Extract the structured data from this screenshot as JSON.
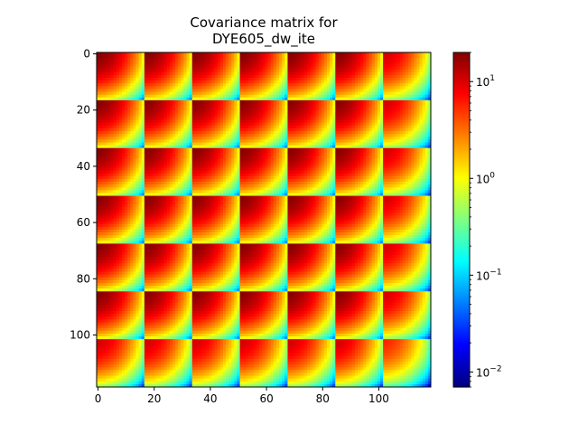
{
  "chart_data": {
    "type": "heatmap",
    "title": "Covariance matrix for",
    "subtitle": "DYE605_dw_ite",
    "xlabel": "",
    "ylabel": "",
    "n": 119,
    "block_size": 17,
    "n_blocks": 7,
    "xlim": [
      0,
      119
    ],
    "ylim": [
      119,
      0
    ],
    "x_ticks": [
      0,
      20,
      40,
      60,
      80,
      100
    ],
    "y_ticks": [
      0,
      20,
      40,
      60,
      80,
      100
    ],
    "color_scale": "log",
    "colormap": "jet",
    "color_range": [
      0.007,
      20
    ],
    "colorbar_ticks": [
      {
        "base": "10",
        "exp": "1",
        "value": 10
      },
      {
        "base": "10",
        "exp": "0",
        "value": 1
      },
      {
        "base": "10",
        "exp": "−1",
        "value": 0.1
      },
      {
        "base": "10",
        "exp": "−2",
        "value": 0.01
      }
    ],
    "within_block_variance_profile": [
      19,
      18,
      16,
      14,
      12,
      10,
      8,
      6,
      4.5,
      3.2,
      2.2,
      1.4,
      0.9,
      0.55,
      0.32,
      0.16,
      0.06
    ],
    "block_row_scale": [
      1.0,
      1.0,
      1.0,
      1.0,
      1.0,
      1.0,
      0.55
    ],
    "grid": false,
    "colorbar_position": "right"
  }
}
